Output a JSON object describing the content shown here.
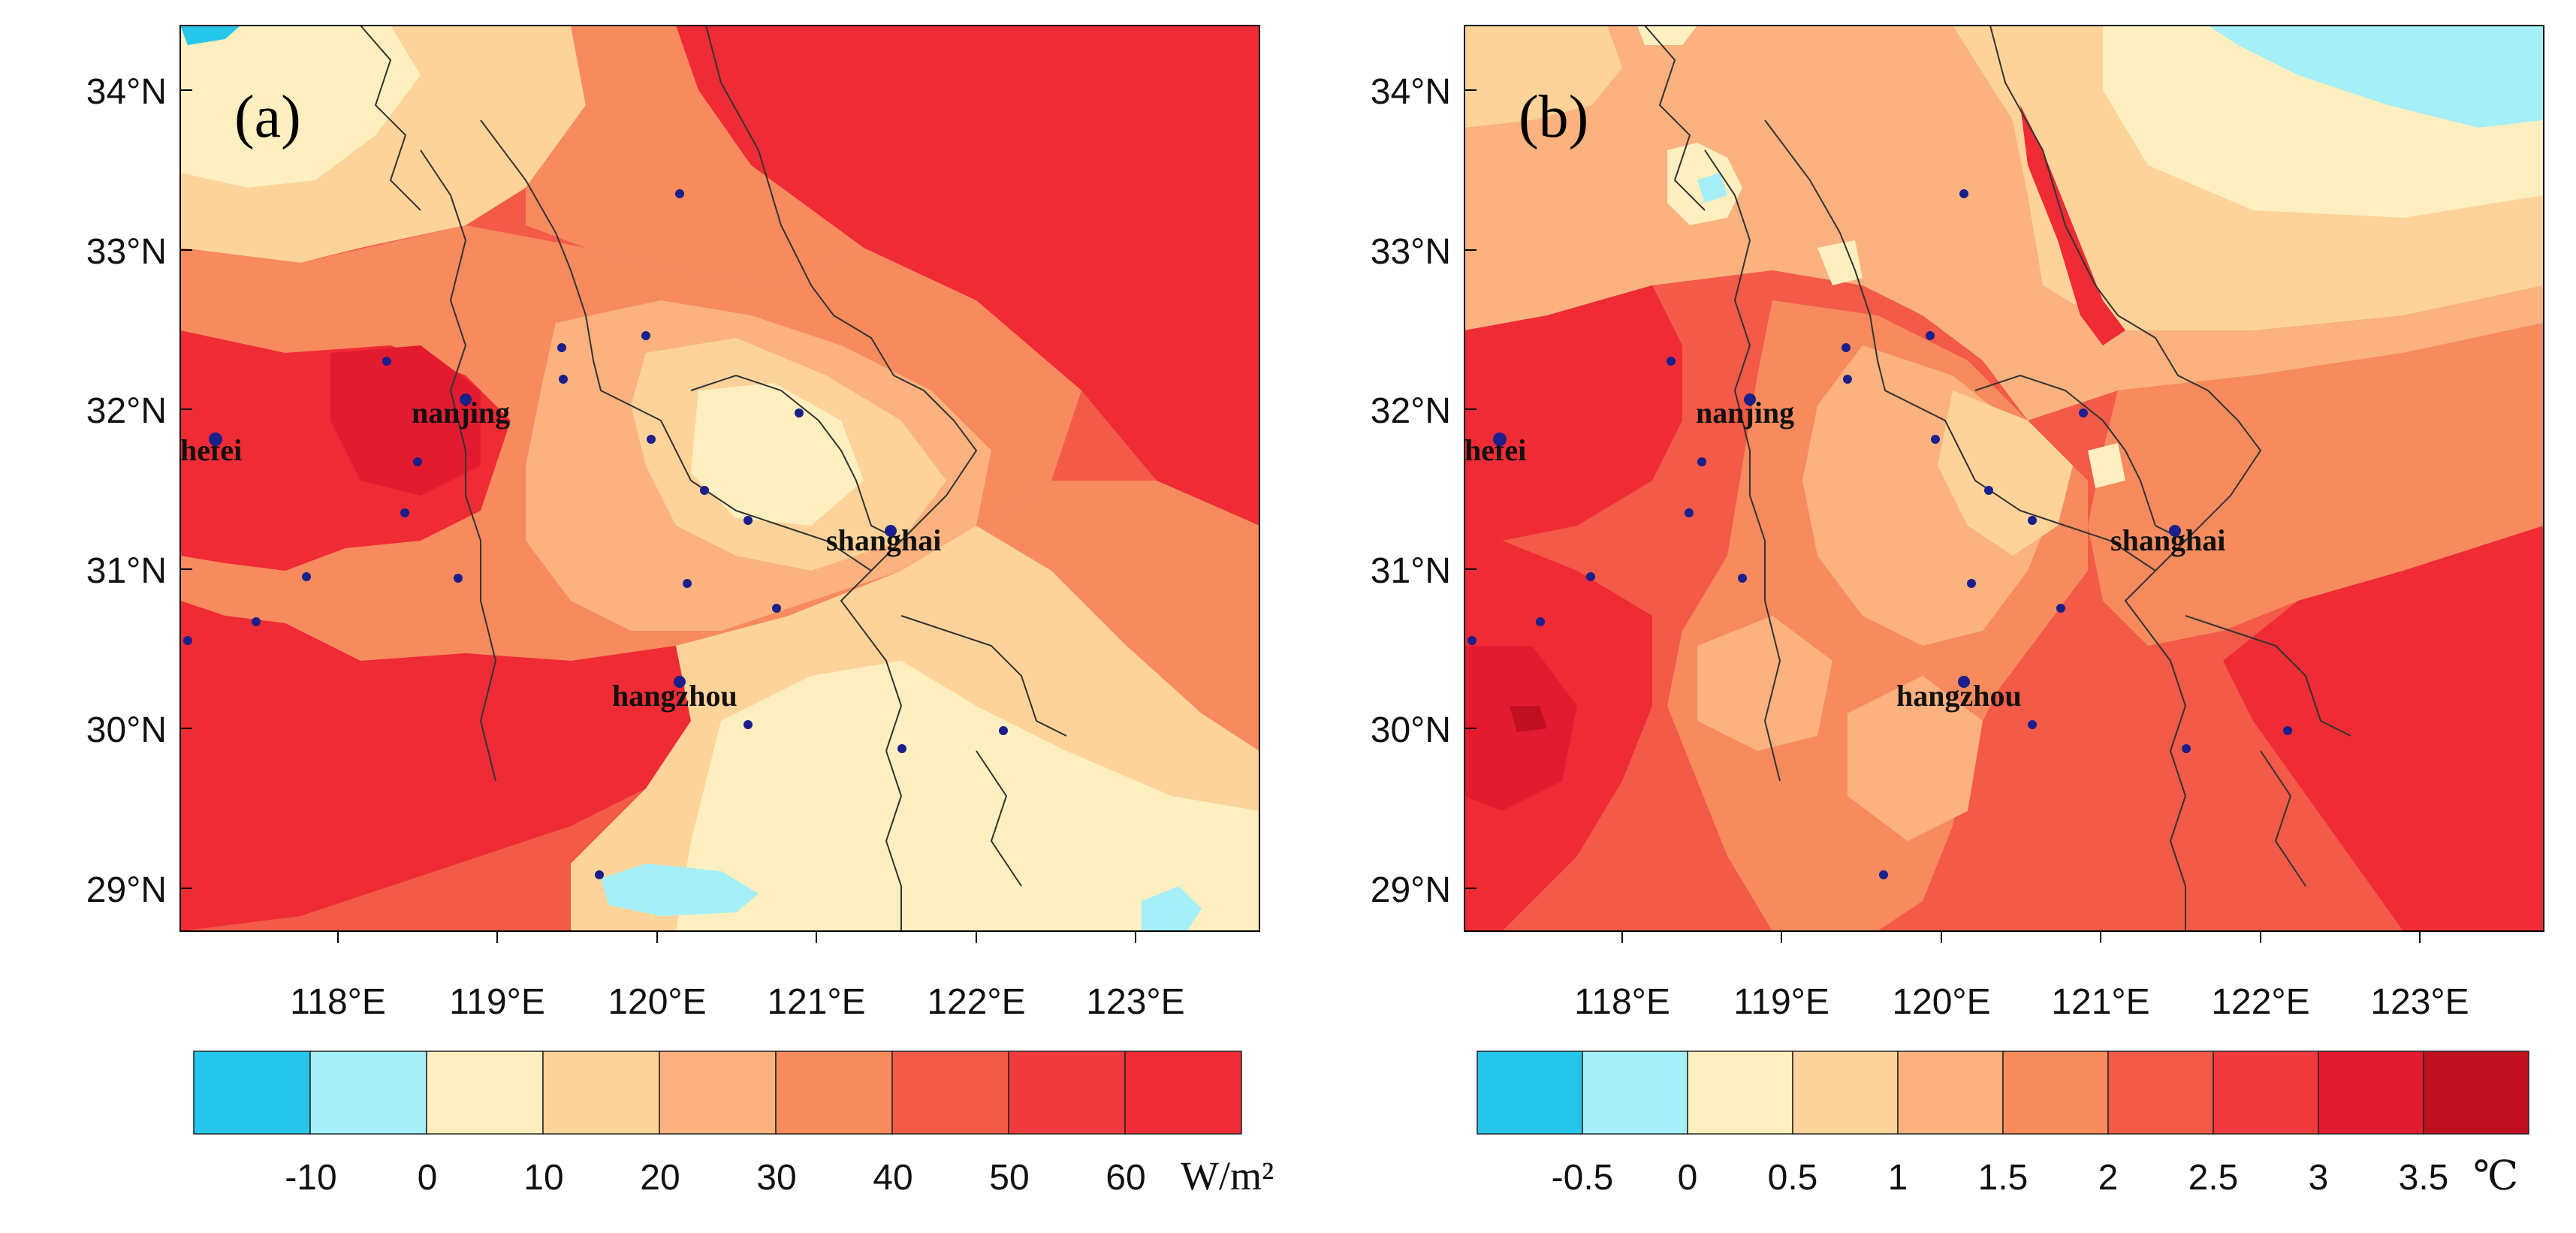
{
  "colors": {
    "cb_a": [
      "#26c6ea",
      "#a4eff8",
      "#fdefbf",
      "#fdd39a",
      "#fbb27f",
      "#f78b5e",
      "#f35a48",
      "#f23a3e",
      "#ef2b35"
    ],
    "cb_b": [
      "#26c6ea",
      "#a4eff8",
      "#fdefbf",
      "#fdd39a",
      "#fbb27f",
      "#f78b5e",
      "#f35a48",
      "#f23a3e",
      "#e31b30",
      "#c0101f"
    ],
    "site": "#1a1f8c",
    "border": "#333333"
  },
  "panels": [
    {
      "id": "a",
      "label": "(a)",
      "lat_ticks": [
        "34°N",
        "33°N",
        "32°N",
        "31°N",
        "30°N",
        "29°N"
      ],
      "lon_ticks": [
        "118°E",
        "119°E",
        "120°E",
        "121°E",
        "122°E",
        "123°E"
      ],
      "colorbar_labels": [
        "-10",
        "0",
        "10",
        "20",
        "30",
        "40",
        "50",
        "60"
      ],
      "unit": "W/m²",
      "cities": [
        "nanjing",
        "hefei",
        "shanghai",
        "hangzhou"
      ]
    },
    {
      "id": "b",
      "label": "(b)",
      "lat_ticks": [
        "34°N",
        "33°N",
        "32°N",
        "31°N",
        "30°N",
        "29°N"
      ],
      "lon_ticks": [
        "118°E",
        "119°E",
        "120°E",
        "121°E",
        "122°E",
        "123°E"
      ],
      "colorbar_labels": [
        "-0.5",
        "0",
        "0.5",
        "1",
        "1.5",
        "2",
        "2.5",
        "3",
        "3.5"
      ],
      "unit": "℃",
      "cities": [
        "nanjing",
        "hefei",
        "shanghai",
        "hangzhou"
      ]
    }
  ]
}
